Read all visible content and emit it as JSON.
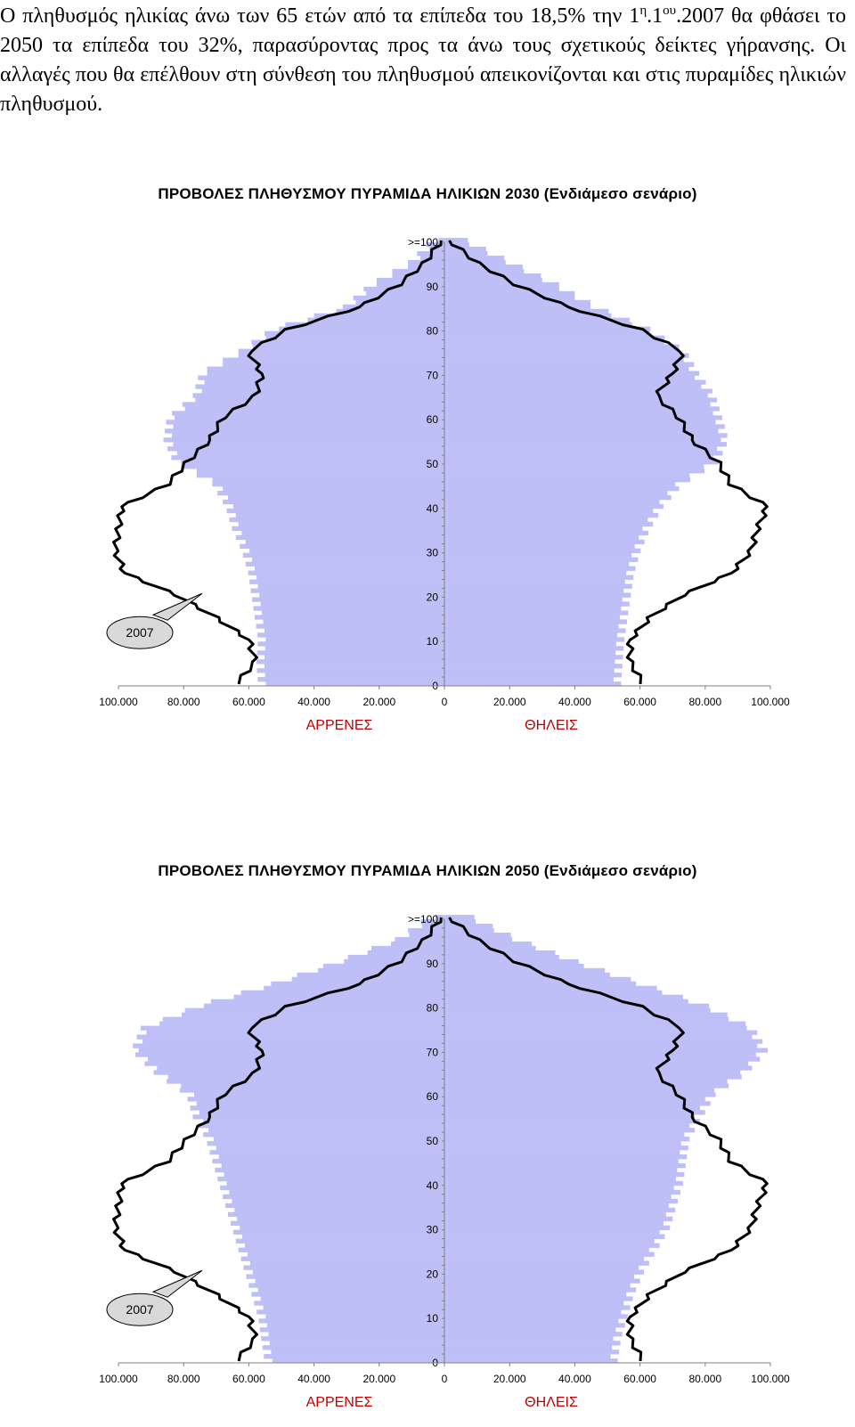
{
  "paragraph": {
    "part1": "Ο πληθυσμός ηλικίας άνω των 65 ετών από τα επίπεδα του 18,5% την 1",
    "sup1": "η",
    "part2": ".1",
    "sup2": "ου",
    "part3": ".2007 θα φθάσει το 2050 τα επίπεδα του 32%, παρασύροντας προς τα άνω τους σχετικούς δείκτες γήρανσης. Οι αλλαγές που θα επέλθουν στη σύνθεση του πληθυσμού απεικονίζονται και στις πυραμίδες ηλικιών πληθυσμού."
  },
  "colors": {
    "bars": "#bfbff7",
    "line": "#000000",
    "sex_labels": "#c00000",
    "callout_fill": "#d9d9d9"
  },
  "chart_data": [
    {
      "type": "bar",
      "subtype": "population-pyramid",
      "title": "ΠΡΟΒΟΛΕΣ ΠΛΗΘΥΣΜΟΥ ΠΥΡΑΜΙΔΑ ΗΛΙΚΙΩΝ 2030 (Ενδιάμεσο σενάριο)",
      "age_ticks": [
        "0",
        "10",
        "20",
        "30",
        "40",
        "50",
        "60",
        "70",
        "80",
        "90",
        ">=100"
      ],
      "x_ticks": [
        "100.000",
        "80.000",
        "60.000",
        "40.000",
        "20.000",
        "0",
        "20.000",
        "40.000",
        "60.000",
        "80.000",
        "100.000"
      ],
      "xlim": [
        -100000,
        100000
      ],
      "ylim": [
        0,
        100
      ],
      "left_label": "ΑΡΡΕΝΕΣ",
      "right_label": "ΘΗΛΕΙΣ",
      "callout": "2007",
      "knots": {
        "age": [
          0,
          5,
          10,
          15,
          20,
          25,
          30,
          35,
          40,
          45,
          50,
          55,
          60,
          65,
          70,
          75,
          80,
          85,
          90,
          95,
          100
        ],
        "male_bars": [
          56000,
          56500,
          56000,
          57000,
          58000,
          59000,
          61000,
          64000,
          66000,
          70000,
          82000,
          85000,
          84000,
          76000,
          74000,
          62000,
          52000,
          30000,
          22000,
          10000,
          3000
        ],
        "female_bars": [
          53000,
          53500,
          54000,
          55000,
          56000,
          57000,
          59000,
          62000,
          66000,
          72000,
          83000,
          86000,
          84000,
          82000,
          77000,
          73000,
          62000,
          46000,
          34000,
          20000,
          6000
        ],
        "male_2007": [
          64000,
          58000,
          60000,
          70000,
          82000,
          98000,
          101000,
          100000,
          99000,
          85000,
          79000,
          72000,
          68000,
          58000,
          56000,
          60000,
          48000,
          26000,
          14000,
          6000,
          1000
        ],
        "female_2007": [
          61000,
          57000,
          57000,
          63000,
          73000,
          88000,
          94000,
          96000,
          99000,
          88000,
          84000,
          76000,
          72000,
          65000,
          70000,
          73000,
          60000,
          38000,
          22000,
          10000,
          1500
        ]
      }
    },
    {
      "type": "bar",
      "subtype": "population-pyramid",
      "title": "ΠΡΟΒΟΛΕΣ ΠΛΗΘΥΣΜΟΥ ΠΥΡΑΜΙΔΑ ΗΛΙΚΙΩΝ 2050 (Ενδιάμεσο σενάριο)",
      "age_ticks": [
        "0",
        "10",
        "20",
        "30",
        "40",
        "50",
        "60",
        "70",
        "80",
        "90",
        ">=100"
      ],
      "x_ticks": [
        "100.000",
        "80.000",
        "60.000",
        "40.000",
        "20.000",
        "0",
        "20.000",
        "40.000",
        "60.000",
        "80.000",
        "100.000"
      ],
      "xlim": [
        -100000,
        100000
      ],
      "ylim": [
        0,
        100
      ],
      "left_label": "ΑΡΡΕΝΕΣ",
      "right_label": "ΘΗΛΕΙΣ",
      "callout": "2007",
      "knots": {
        "age": [
          0,
          5,
          10,
          15,
          20,
          25,
          30,
          35,
          40,
          45,
          50,
          55,
          60,
          65,
          70,
          75,
          80,
          85,
          90,
          95,
          100
        ],
        "male_bars": [
          54000,
          55000,
          56000,
          58000,
          60000,
          62000,
          64000,
          66000,
          68000,
          70000,
          72000,
          76000,
          78000,
          88000,
          95000,
          92000,
          75000,
          52000,
          32000,
          14000,
          4000
        ],
        "female_bars": [
          52000,
          53000,
          55000,
          57000,
          60000,
          64000,
          68000,
          70000,
          72000,
          73000,
          74000,
          78000,
          82000,
          92000,
          98000,
          94000,
          80000,
          60000,
          40000,
          22000,
          8000
        ],
        "male_2007": [
          64000,
          58000,
          60000,
          70000,
          82000,
          98000,
          101000,
          100000,
          99000,
          85000,
          79000,
          72000,
          68000,
          58000,
          56000,
          60000,
          48000,
          26000,
          14000,
          6000,
          1000
        ],
        "female_2007": [
          61000,
          57000,
          57000,
          63000,
          73000,
          88000,
          94000,
          96000,
          99000,
          88000,
          84000,
          76000,
          72000,
          65000,
          70000,
          73000,
          60000,
          38000,
          22000,
          10000,
          1500
        ]
      }
    }
  ]
}
